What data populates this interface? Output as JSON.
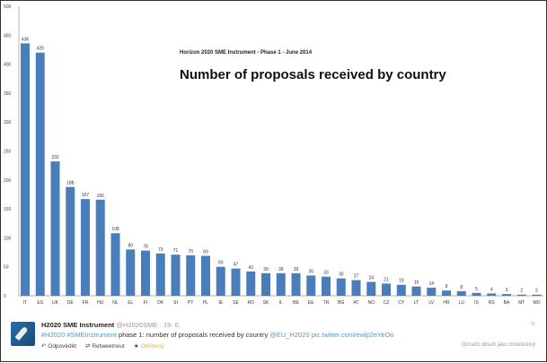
{
  "chart_data": {
    "type": "bar",
    "subtitle": "Horizon 2020 SME Instrument - Phase 1 - June 2014",
    "title": "Number of proposals received by country",
    "categories": [
      "IT",
      "ES",
      "UK",
      "DE",
      "FR",
      "HU",
      "NL",
      "EL",
      "FI",
      "DK",
      "SI",
      "PT",
      "PL",
      "IE",
      "SE",
      "RO",
      "SK",
      "IL",
      "BE",
      "EE",
      "TR",
      "BG",
      "AT",
      "NO",
      "CZ",
      "CY",
      "LT",
      "LV",
      "HR",
      "LU",
      "IS",
      "RS",
      "BA",
      "MT",
      "MO"
    ],
    "values": [
      436,
      420,
      232,
      188,
      167,
      166,
      108,
      80,
      78,
      73,
      71,
      70,
      69,
      50,
      47,
      42,
      39,
      39,
      39,
      35,
      33,
      30,
      27,
      24,
      21,
      19,
      16,
      14,
      9,
      8,
      5,
      4,
      3,
      2,
      2
    ],
    "ylim": [
      0,
      500
    ],
    "yticks": [
      0,
      50,
      100,
      150,
      200,
      250,
      300,
      350,
      400,
      450,
      500
    ],
    "grid": false,
    "bar_color": "#4a7ebb",
    "data_labels": true
  },
  "tweet": {
    "name": "H2020 SME Instrument",
    "handle": "@H2020SME · 19. 6.",
    "hashtag1": "#H2020",
    "hashtag2": "#SMEinstrument",
    "body": " phase 1: number of proposals received by country ",
    "mention": "@EU_H2020",
    "pic": " pic.twitter.com/ewlp2eYeOo",
    "reply": "Odpovědět",
    "retweet": "Retweetnout",
    "favorite": "Oblíbený",
    "sensitive": "Označit obsah jako choulostivý"
  }
}
